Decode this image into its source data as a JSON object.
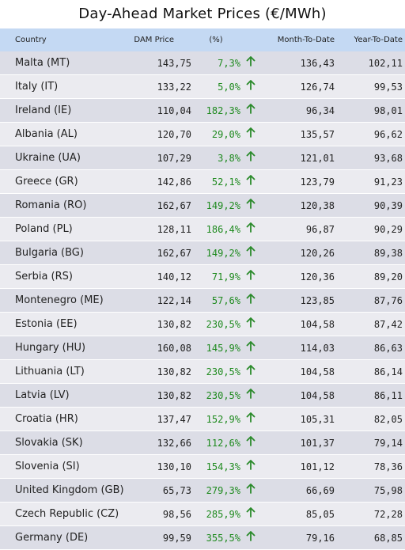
{
  "title": "Day-Ahead Market Prices (€/MWh)",
  "headers": {
    "country": "Country",
    "dam": "DAM Price",
    "pct": "(%)",
    "mtd": "Month-To-Date",
    "ytd": "Year-To-Date"
  },
  "arrow_icon": "arrow-up-icon",
  "colors": {
    "header_bg": "#c4d9f3",
    "row_dark": "#dcdde6",
    "row_light": "#ebebf0",
    "positive": "#1e8a1e"
  },
  "rows": [
    {
      "country": "Malta (MT)",
      "dam": "143,75",
      "pct": "7,3%",
      "mtd": "136,43",
      "ytd": "102,11"
    },
    {
      "country": "Italy (IT)",
      "dam": "133,22",
      "pct": "5,0%",
      "mtd": "126,74",
      "ytd": "99,53"
    },
    {
      "country": "Ireland (IE)",
      "dam": "110,04",
      "pct": "182,3%",
      "mtd": "96,34",
      "ytd": "98,01"
    },
    {
      "country": "Albania (AL)",
      "dam": "120,70",
      "pct": "29,0%",
      "mtd": "135,57",
      "ytd": "96,62"
    },
    {
      "country": "Ukraine (UA)",
      "dam": "107,29",
      "pct": "3,8%",
      "mtd": "121,01",
      "ytd": "93,68"
    },
    {
      "country": "Greece (GR)",
      "dam": "142,86",
      "pct": "52,1%",
      "mtd": "123,79",
      "ytd": "91,23"
    },
    {
      "country": "Romania (RO)",
      "dam": "162,67",
      "pct": "149,2%",
      "mtd": "120,38",
      "ytd": "90,39"
    },
    {
      "country": "Poland (PL)",
      "dam": "128,11",
      "pct": "186,4%",
      "mtd": "96,87",
      "ytd": "90,29"
    },
    {
      "country": "Bulgaria (BG)",
      "dam": "162,67",
      "pct": "149,2%",
      "mtd": "120,26",
      "ytd": "89,38"
    },
    {
      "country": "Serbia (RS)",
      "dam": "140,12",
      "pct": "71,9%",
      "mtd": "120,36",
      "ytd": "89,20"
    },
    {
      "country": "Montenegro (ME)",
      "dam": "122,14",
      "pct": "57,6%",
      "mtd": "123,85",
      "ytd": "87,76"
    },
    {
      "country": "Estonia (EE)",
      "dam": "130,82",
      "pct": "230,5%",
      "mtd": "104,58",
      "ytd": "87,42"
    },
    {
      "country": "Hungary (HU)",
      "dam": "160,08",
      "pct": "145,9%",
      "mtd": "114,03",
      "ytd": "86,63"
    },
    {
      "country": "Lithuania (LT)",
      "dam": "130,82",
      "pct": "230,5%",
      "mtd": "104,58",
      "ytd": "86,14"
    },
    {
      "country": "Latvia (LV)",
      "dam": "130,82",
      "pct": "230,5%",
      "mtd": "104,58",
      "ytd": "86,11"
    },
    {
      "country": "Croatia (HR)",
      "dam": "137,47",
      "pct": "152,9%",
      "mtd": "105,31",
      "ytd": "82,05"
    },
    {
      "country": "Slovakia (SK)",
      "dam": "132,66",
      "pct": "112,6%",
      "mtd": "101,37",
      "ytd": "79,14"
    },
    {
      "country": "Slovenia (SI)",
      "dam": "130,10",
      "pct": "154,3%",
      "mtd": "101,12",
      "ytd": "78,36"
    },
    {
      "country": "United Kingdom (GB)",
      "dam": "65,73",
      "pct": "279,3%",
      "mtd": "66,69",
      "ytd": "75,98"
    },
    {
      "country": "Czech Republic (CZ)",
      "dam": "98,56",
      "pct": "285,9%",
      "mtd": "85,05",
      "ytd": "72,28"
    },
    {
      "country": "Germany (DE)",
      "dam": "99,59",
      "pct": "355,5%",
      "mtd": "79,16",
      "ytd": "68,85"
    }
  ]
}
